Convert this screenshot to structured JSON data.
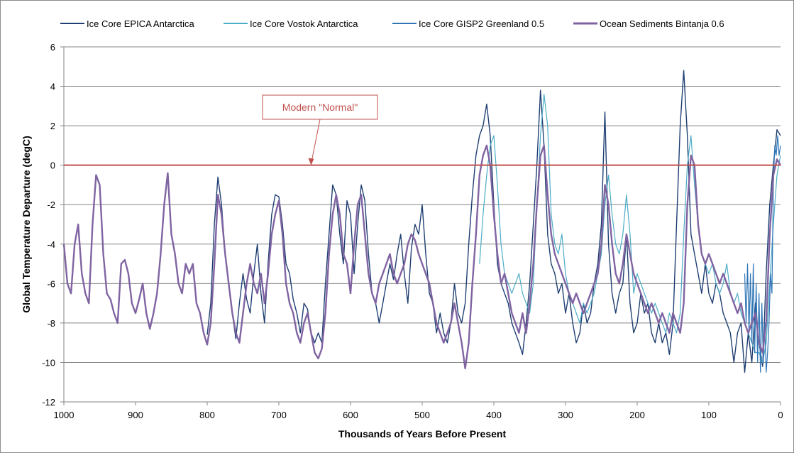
{
  "chart_data": {
    "type": "line",
    "title": "",
    "xlabel": "Thousands of Years Before Present",
    "ylabel": "Global Temperature Departure (degC)",
    "xlim": [
      1000,
      0
    ],
    "ylim": [
      -12,
      6
    ],
    "x_ticks": [
      1000,
      900,
      800,
      700,
      600,
      500,
      400,
      300,
      200,
      100,
      0
    ],
    "y_ticks": [
      -12,
      -10,
      -8,
      -6,
      -4,
      -2,
      0,
      2,
      4,
      6
    ],
    "grid": "horizontal",
    "legend_position": "top",
    "reference_line": {
      "y": 0,
      "color": "#c0504d"
    },
    "annotation": {
      "text": "Modern \"Normal\"",
      "x": 655,
      "y": 0
    },
    "series": [
      {
        "name": "Ice Core EPICA Antarctica",
        "color": "#1f3f72",
        "width": 1.4,
        "x": [
          800,
          795,
          790,
          785,
          780,
          775,
          770,
          765,
          760,
          755,
          750,
          745,
          740,
          735,
          730,
          725,
          720,
          715,
          710,
          705,
          700,
          695,
          690,
          685,
          680,
          675,
          670,
          665,
          660,
          655,
          650,
          645,
          640,
          635,
          630,
          625,
          620,
          615,
          610,
          605,
          600,
          595,
          590,
          585,
          580,
          575,
          570,
          565,
          560,
          555,
          550,
          545,
          540,
          535,
          530,
          525,
          520,
          515,
          510,
          505,
          500,
          495,
          490,
          485,
          480,
          475,
          470,
          465,
          460,
          455,
          450,
          445,
          440,
          435,
          430,
          425,
          420,
          415,
          410,
          405,
          400,
          395,
          390,
          385,
          380,
          375,
          370,
          365,
          360,
          355,
          350,
          345,
          340,
          335,
          330,
          325,
          320,
          315,
          310,
          305,
          300,
          295,
          290,
          285,
          280,
          275,
          270,
          265,
          260,
          255,
          250,
          245,
          240,
          235,
          230,
          225,
          220,
          215,
          210,
          205,
          200,
          195,
          190,
          185,
          180,
          175,
          170,
          165,
          160,
          155,
          150,
          145,
          140,
          135,
          130,
          125,
          120,
          115,
          110,
          105,
          100,
          95,
          90,
          85,
          80,
          75,
          70,
          65,
          60,
          55,
          50,
          45,
          40,
          35,
          30,
          25,
          20,
          15,
          10,
          5,
          0
        ],
        "values": [
          -8.6,
          -7.0,
          -3.0,
          -0.6,
          -2.0,
          -4.5,
          -6.0,
          -7.5,
          -8.8,
          -7.0,
          -5.5,
          -6.8,
          -7.5,
          -5.5,
          -4.0,
          -6.5,
          -8.0,
          -5.0,
          -2.5,
          -1.5,
          -1.6,
          -3.0,
          -5.0,
          -5.5,
          -6.8,
          -7.5,
          -8.5,
          -7.0,
          -7.3,
          -8.5,
          -9.0,
          -8.5,
          -9.0,
          -6.0,
          -3.5,
          -1.0,
          -1.5,
          -3.5,
          -5.0,
          -1.8,
          -2.5,
          -5.5,
          -3.0,
          -1.0,
          -1.8,
          -4.5,
          -6.5,
          -7.0,
          -8.0,
          -7.0,
          -6.0,
          -5.0,
          -5.8,
          -4.5,
          -3.5,
          -5.5,
          -7.0,
          -4.2,
          -3.0,
          -3.5,
          -2.0,
          -4.5,
          -6.5,
          -7.0,
          -8.5,
          -7.5,
          -8.5,
          -9.0,
          -8.0,
          -6.0,
          -7.5,
          -8.0,
          -7.0,
          -4.0,
          -1.5,
          0.5,
          1.5,
          2.0,
          3.1,
          1.5,
          -2.0,
          -5.0,
          -6.0,
          -6.5,
          -7.0,
          -8.0,
          -8.5,
          -9.0,
          -9.6,
          -8.0,
          -6.0,
          -3.0,
          0.0,
          3.8,
          1.0,
          -3.5,
          -5.0,
          -5.5,
          -6.5,
          -6.0,
          -7.5,
          -6.5,
          -8.0,
          -9.0,
          -8.5,
          -7.0,
          -8.0,
          -7.5,
          -6.0,
          -5.0,
          -3.0,
          2.7,
          -4.0,
          -6.5,
          -7.5,
          -6.5,
          -6.0,
          -3.5,
          -7.0,
          -8.5,
          -8.0,
          -6.5,
          -7.5,
          -7.0,
          -8.5,
          -9.0,
          -8.0,
          -9.0,
          -8.5,
          -9.6,
          -8.0,
          -3.0,
          2.0,
          4.8,
          1.5,
          -3.5,
          -4.5,
          -5.5,
          -6.5,
          -5.0,
          -6.5,
          -7.0,
          -6.0,
          -6.5,
          -7.5,
          -8.0,
          -8.5,
          -10.0,
          -8.5,
          -8.0,
          -10.5,
          -8.5,
          -10.0,
          -7.0,
          -9.0,
          -10.2,
          -5.5,
          -2.0,
          0.0,
          1.8,
          1.5
        ]
      },
      {
        "name": "Ice Core Vostok Antarctica",
        "color": "#4bacc6",
        "width": 1.2,
        "x": [
          420,
          415,
          410,
          405,
          400,
          395,
          390,
          385,
          380,
          375,
          370,
          365,
          360,
          355,
          350,
          345,
          340,
          335,
          330,
          325,
          320,
          315,
          310,
          305,
          300,
          295,
          290,
          285,
          280,
          275,
          270,
          265,
          260,
          255,
          250,
          245,
          240,
          235,
          230,
          225,
          220,
          215,
          210,
          205,
          200,
          195,
          190,
          185,
          180,
          175,
          170,
          165,
          160,
          155,
          150,
          145,
          140,
          135,
          130,
          125,
          120,
          115,
          110,
          105,
          100,
          95,
          90,
          85,
          80,
          75,
          70,
          65,
          60,
          55,
          50,
          45,
          40,
          35,
          30,
          25,
          20,
          15,
          10,
          5,
          0
        ],
        "values": [
          -5.0,
          -2.5,
          -0.5,
          1.0,
          1.5,
          -1.0,
          -4.0,
          -5.5,
          -6.0,
          -6.5,
          -6.0,
          -5.5,
          -6.5,
          -7.0,
          -7.5,
          -6.0,
          -2.0,
          1.5,
          3.6,
          2.0,
          -2.5,
          -4.0,
          -4.5,
          -3.5,
          -5.5,
          -6.5,
          -7.0,
          -7.5,
          -8.0,
          -7.0,
          -7.5,
          -7.0,
          -6.5,
          -5.5,
          -4.5,
          -2.0,
          -0.5,
          -2.5,
          -4.0,
          -4.5,
          -3.5,
          -1.5,
          -3.5,
          -6.5,
          -5.5,
          -6.0,
          -6.5,
          -7.0,
          -7.5,
          -7.0,
          -7.5,
          -8.0,
          -8.5,
          -7.5,
          -8.0,
          -8.5,
          -7.5,
          -3.5,
          0.0,
          1.5,
          -1.0,
          -3.0,
          -4.5,
          -5.0,
          -5.5,
          -5.0,
          -6.0,
          -6.5,
          -6.0,
          -5.0,
          -6.5,
          -7.0,
          -6.5,
          -7.5,
          -8.0,
          -8.5,
          -9.0,
          -9.5,
          -9.5,
          -10.0,
          -9.0,
          -6.0,
          -3.0,
          -0.5,
          0.5
        ]
      },
      {
        "name": "Ice Core GISP2 Greenland 0.5",
        "color": "#2e75b6",
        "width": 1.2,
        "x": [
          50,
          48,
          46,
          44,
          42,
          40,
          38,
          36,
          34,
          32,
          30,
          28,
          26,
          24,
          22,
          20,
          18,
          16,
          14,
          12,
          10,
          8,
          6,
          4,
          2,
          0
        ],
        "values": [
          -5.5,
          -8.0,
          -5.0,
          -8.5,
          -5.5,
          -9.0,
          -5.0,
          -9.5,
          -6.0,
          -10.0,
          -6.5,
          -10.5,
          -7.0,
          -10.0,
          -8.0,
          -10.5,
          -9.5,
          -8.0,
          -5.5,
          -6.5,
          -1.0,
          1.0,
          0.5,
          1.5,
          0.5,
          1.0
        ]
      },
      {
        "name": "Ocean Sediments Bintanja 0.6",
        "color": "#8064a2",
        "width": 2.4,
        "x": [
          1000,
          995,
          990,
          985,
          980,
          975,
          970,
          965,
          960,
          955,
          950,
          945,
          940,
          935,
          930,
          925,
          920,
          915,
          910,
          905,
          900,
          895,
          890,
          885,
          880,
          875,
          870,
          865,
          860,
          855,
          850,
          845,
          840,
          835,
          830,
          825,
          820,
          815,
          810,
          805,
          800,
          795,
          790,
          785,
          780,
          775,
          770,
          765,
          760,
          755,
          750,
          745,
          740,
          735,
          730,
          725,
          720,
          715,
          710,
          705,
          700,
          695,
          690,
          685,
          680,
          675,
          670,
          665,
          660,
          655,
          650,
          645,
          640,
          635,
          630,
          625,
          620,
          615,
          610,
          605,
          600,
          595,
          590,
          585,
          580,
          575,
          570,
          565,
          560,
          555,
          550,
          545,
          540,
          535,
          530,
          525,
          520,
          515,
          510,
          505,
          500,
          495,
          490,
          485,
          480,
          475,
          470,
          465,
          460,
          455,
          450,
          445,
          440,
          435,
          430,
          425,
          420,
          415,
          410,
          405,
          400,
          395,
          390,
          385,
          380,
          375,
          370,
          365,
          360,
          355,
          350,
          345,
          340,
          335,
          330,
          325,
          320,
          315,
          310,
          305,
          300,
          295,
          290,
          285,
          280,
          275,
          270,
          265,
          260,
          255,
          250,
          245,
          240,
          235,
          230,
          225,
          220,
          215,
          210,
          205,
          200,
          195,
          190,
          185,
          180,
          175,
          170,
          165,
          160,
          155,
          150,
          145,
          140,
          135,
          130,
          125,
          120,
          115,
          110,
          105,
          100,
          95,
          90,
          85,
          80,
          75,
          70,
          65,
          60,
          55,
          50,
          45,
          40,
          35,
          30,
          25,
          20,
          15,
          10,
          5,
          0
        ],
        "values": [
          -4.0,
          -6.0,
          -6.5,
          -4.0,
          -3.0,
          -5.5,
          -6.5,
          -7.0,
          -3.0,
          -0.5,
          -1.0,
          -4.5,
          -6.5,
          -6.8,
          -7.5,
          -8.0,
          -5.0,
          -4.8,
          -5.5,
          -7.0,
          -7.5,
          -6.8,
          -6.0,
          -7.5,
          -8.3,
          -7.5,
          -6.5,
          -4.5,
          -2.0,
          -0.4,
          -3.5,
          -4.5,
          -6.0,
          -6.5,
          -5.0,
          -5.5,
          -5.0,
          -7.0,
          -7.5,
          -8.5,
          -9.1,
          -8.0,
          -5.0,
          -1.5,
          -2.5,
          -4.5,
          -6.0,
          -7.5,
          -8.5,
          -9.0,
          -7.5,
          -6.0,
          -5.0,
          -6.0,
          -6.5,
          -5.5,
          -7.0,
          -5.5,
          -3.5,
          -2.5,
          -1.8,
          -3.5,
          -6.0,
          -7.0,
          -7.5,
          -8.5,
          -9.0,
          -8.0,
          -7.5,
          -8.5,
          -9.5,
          -9.8,
          -9.3,
          -7.5,
          -4.5,
          -2.5,
          -1.5,
          -2.5,
          -4.5,
          -5.0,
          -6.5,
          -4.0,
          -2.0,
          -1.5,
          -3.5,
          -5.5,
          -6.5,
          -7.0,
          -6.0,
          -5.5,
          -5.0,
          -4.5,
          -5.5,
          -6.0,
          -5.5,
          -5.0,
          -4.0,
          -3.5,
          -3.8,
          -4.5,
          -5.0,
          -5.5,
          -6.0,
          -7.0,
          -8.0,
          -8.5,
          -9.0,
          -8.5,
          -8.0,
          -7.0,
          -8.0,
          -9.0,
          -10.3,
          -9.0,
          -6.0,
          -3.5,
          -0.5,
          0.5,
          1.0,
          0.0,
          -2.5,
          -4.5,
          -6.0,
          -5.5,
          -6.5,
          -7.5,
          -8.0,
          -8.5,
          -7.5,
          -8.5,
          -7.0,
          -5.0,
          -2.0,
          0.5,
          1.0,
          -1.5,
          -3.5,
          -4.5,
          -5.0,
          -5.5,
          -6.0,
          -6.5,
          -7.0,
          -6.5,
          -7.0,
          -7.5,
          -7.0,
          -6.5,
          -6.0,
          -5.5,
          -4.0,
          -1.0,
          -2.0,
          -4.0,
          -5.5,
          -6.0,
          -5.0,
          -3.5,
          -4.5,
          -5.5,
          -6.0,
          -6.5,
          -7.0,
          -7.5,
          -7.0,
          -7.5,
          -8.0,
          -7.5,
          -8.0,
          -8.5,
          -7.5,
          -8.0,
          -8.5,
          -7.0,
          -2.0,
          0.5,
          0.0,
          -3.0,
          -4.5,
          -5.0,
          -4.5,
          -5.0,
          -5.5,
          -6.0,
          -5.5,
          -6.0,
          -6.5,
          -7.0,
          -7.5,
          -7.0,
          -8.0,
          -8.5,
          -8.0,
          -7.5,
          -9.0,
          -9.5,
          -8.0,
          -3.5,
          -0.5,
          0.3,
          0.0
        ]
      }
    ]
  }
}
